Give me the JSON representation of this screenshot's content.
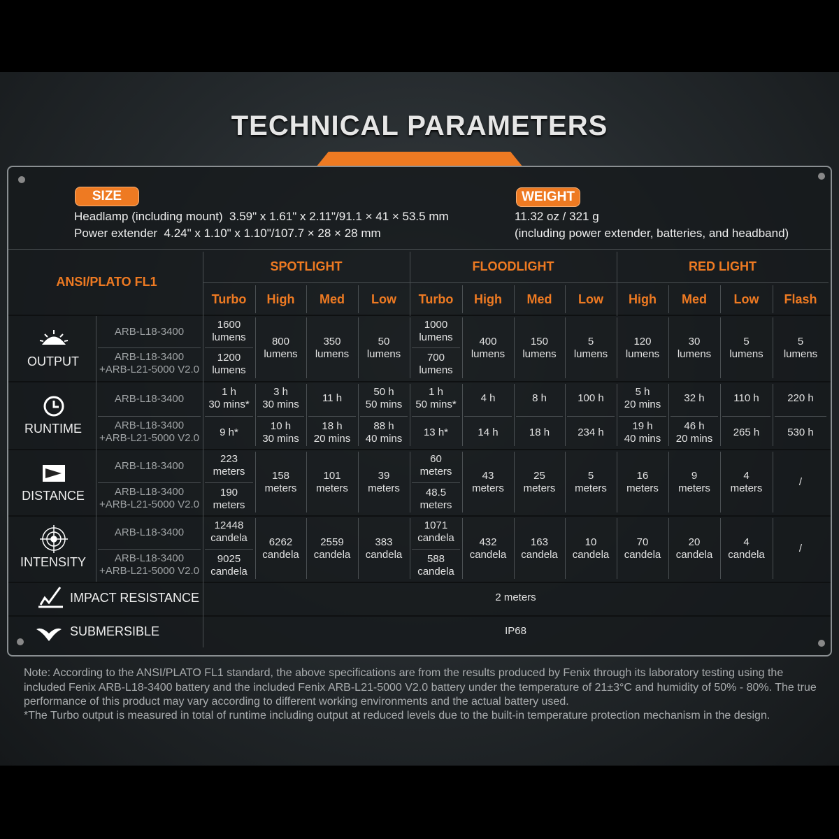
{
  "header": {
    "title": "TECHNICAL PARAMETERS"
  },
  "size": {
    "label": "SIZE",
    "lines": [
      "Headlamp (including mount)  3.59\" x 1.61\" x 2.11\"/91.1 × 41 × 53.5 mm",
      "Power extender  4.24\" x 1.10\" x 1.10\"/107.7 × 28 × 28 mm"
    ]
  },
  "weight": {
    "label": "WEIGHT",
    "lines": [
      "11.32 oz / 321 g",
      "(including power extender, batteries, and headband)"
    ]
  },
  "table": {
    "standard": "ANSI/PLATO FL1",
    "groups": [
      {
        "name": "SPOTLIGHT",
        "modes": [
          "Turbo",
          "High",
          "Med",
          "Low"
        ]
      },
      {
        "name": "FLOODLIGHT",
        "modes": [
          "Turbo",
          "High",
          "Med",
          "Low"
        ]
      },
      {
        "name": "RED LIGHT",
        "modes": [
          "High",
          "Med",
          "Low",
          "Flash"
        ]
      }
    ],
    "rows": [
      {
        "label": "OUTPUT",
        "models": [
          "ARB-L18-3400",
          "ARB-L18-3400\n+ARB-L21-5000 V2.0"
        ],
        "cells": [
          [
            "1600\nlumens",
            "1200\nlumens"
          ],
          "800\nlumens",
          "350\nlumens",
          "50\nlumens",
          [
            "1000\nlumens",
            "700\nlumens"
          ],
          "400\nlumens",
          "150\nlumens",
          "5\nlumens",
          "120\nlumens",
          "30\nlumens",
          "5\nlumens",
          "5\nlumens"
        ]
      },
      {
        "label": "RUNTIME",
        "models": [
          "ARB-L18-3400",
          "ARB-L18-3400\n+ARB-L21-5000 V2.0"
        ],
        "cells": [
          [
            "1 h\n30 mins*",
            "9 h*"
          ],
          [
            "3 h\n30 mins",
            "10 h\n30 mins"
          ],
          [
            "11 h",
            "18 h\n20 mins"
          ],
          [
            "50 h\n50 mins",
            "88 h\n40 mins"
          ],
          [
            "1 h\n50 mins*",
            "13 h*"
          ],
          [
            "4 h",
            "14 h"
          ],
          [
            "8 h",
            "18 h"
          ],
          [
            "100 h",
            "234 h"
          ],
          [
            "5 h\n20 mins",
            "19 h\n40 mins"
          ],
          [
            "32 h",
            "46 h\n20 mins"
          ],
          [
            "110 h",
            "265 h"
          ],
          [
            "220 h",
            "530 h"
          ]
        ]
      },
      {
        "label": "DISTANCE",
        "models": [
          "ARB-L18-3400",
          "ARB-L18-3400\n+ARB-L21-5000 V2.0"
        ],
        "cells": [
          [
            "223\nmeters",
            "190\nmeters"
          ],
          "158\nmeters",
          "101\nmeters",
          "39\nmeters",
          [
            "60\nmeters",
            "48.5\nmeters"
          ],
          "43\nmeters",
          "25\nmeters",
          "5\nmeters",
          "16\nmeters",
          "9\nmeters",
          "4\nmeters",
          "/"
        ]
      },
      {
        "label": "INTENSITY",
        "models": [
          "ARB-L18-3400",
          "ARB-L18-3400\n+ARB-L21-5000 V2.0"
        ],
        "cells": [
          [
            "12448\ncandela",
            "9025\ncandela"
          ],
          "6262\ncandela",
          "2559\ncandela",
          "383\ncandela",
          [
            "1071\ncandela",
            "588\ncandela"
          ],
          "432\ncandela",
          "163\ncandela",
          "10\ncandela",
          "70\ncandela",
          "20\ncandela",
          "4\ncandela",
          "/"
        ]
      }
    ],
    "extras": [
      {
        "label": "IMPACT RESISTANCE",
        "value": "2 meters"
      },
      {
        "label": "SUBMERSIBLE",
        "value": "IP68"
      }
    ]
  },
  "notes": [
    "Note: According to the ANSI/PLATO FL1 standard, the above specifications are from the results produced by Fenix through its laboratory testing using the included Fenix ARB-L18-3400 battery and the included Fenix ARB-L21-5000 V2.0 battery under the temperature of 21±3°C and humidity of 50% - 80%. The true performance of this product may vary according to different working environments and the actual battery used.",
    "*The Turbo output is measured in total of runtime including output at reduced levels due to the built-in temperature protection mechanism in the design."
  ]
}
